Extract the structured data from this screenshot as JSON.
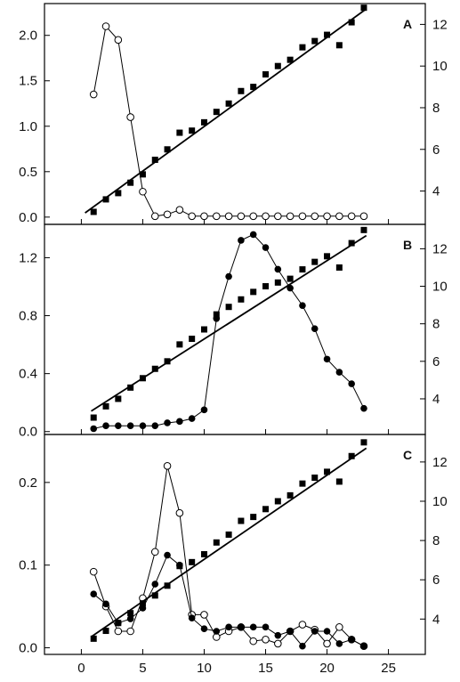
{
  "chart_data": [
    {
      "panel": "A",
      "type": "line",
      "title": "",
      "xlabel": "",
      "ylabel": "",
      "y2label": "",
      "xlim": [
        -3,
        28
      ],
      "ylim": [
        -0.08,
        2.35
      ],
      "y2lim": [
        2.4,
        13.0
      ],
      "x_ticks": [
        "0",
        "5",
        "10",
        "15",
        "20",
        "25"
      ],
      "y_ticks": [
        "0.0",
        "0.5",
        "1.0",
        "1.5",
        "2.0"
      ],
      "y2_ticks": [
        "4",
        "6",
        "8",
        "10",
        "12"
      ],
      "legend": "none",
      "series": [
        {
          "marker": "open-circle",
          "axis": "left",
          "connected": true,
          "x": [
            1,
            2,
            3,
            4,
            5,
            6,
            7,
            8,
            9,
            10,
            11,
            12,
            13,
            14,
            15,
            16,
            17,
            18,
            19,
            20,
            21,
            22,
            23
          ],
          "values": [
            1.35,
            2.1,
            1.95,
            1.1,
            0.28,
            0.01,
            0.03,
            0.08,
            0.01,
            0.01,
            0.01,
            0.01,
            0.01,
            0.01,
            0.01,
            0.01,
            0.01,
            0.01,
            0.01,
            0.01,
            0.01,
            0.01,
            0.01
          ]
        },
        {
          "marker": "filled-square",
          "axis": "right",
          "connected": false,
          "x": [
            1,
            2,
            3,
            4,
            5,
            6,
            7,
            8,
            9,
            10,
            11,
            12,
            13,
            14,
            15,
            16,
            17,
            18,
            19,
            20,
            21,
            22,
            23
          ],
          "values": [
            3.0,
            3.6,
            3.9,
            4.4,
            4.8,
            5.5,
            6.0,
            6.8,
            6.9,
            7.3,
            7.8,
            8.2,
            8.8,
            9.0,
            9.6,
            10.0,
            10.3,
            10.9,
            11.2,
            11.5,
            11.0,
            12.1,
            12.8
          ]
        },
        {
          "marker": "none",
          "axis": "right",
          "connected": true,
          "x": [
            0.3,
            23.1
          ],
          "values": [
            2.95,
            12.7
          ]
        }
      ]
    },
    {
      "panel": "B",
      "type": "line",
      "title": "",
      "xlabel": "",
      "ylabel": "",
      "y2label": "",
      "xlim": [
        -3,
        28
      ],
      "ylim": [
        -0.02,
        1.43
      ],
      "y2lim": [
        2.1,
        13.3
      ],
      "x_ticks": [
        "0",
        "5",
        "10",
        "15",
        "20",
        "25"
      ],
      "y_ticks": [
        "0.0",
        "0.4",
        "0.8",
        "1.2"
      ],
      "y2_ticks": [
        "4",
        "6",
        "8",
        "10",
        "12"
      ],
      "legend": "none",
      "series": [
        {
          "marker": "filled-circle",
          "axis": "left",
          "connected": true,
          "x": [
            1,
            2,
            3,
            4,
            5,
            6,
            7,
            8,
            9,
            10,
            11,
            12,
            13,
            14,
            15,
            16,
            17,
            18,
            19,
            20,
            21,
            22,
            23
          ],
          "values": [
            0.02,
            0.04,
            0.04,
            0.04,
            0.04,
            0.04,
            0.06,
            0.07,
            0.09,
            0.15,
            0.78,
            1.07,
            1.32,
            1.36,
            1.27,
            1.12,
            0.99,
            0.87,
            0.71,
            0.5,
            0.41,
            0.33,
            0.16
          ]
        },
        {
          "marker": "filled-square",
          "axis": "right",
          "connected": false,
          "x": [
            1,
            2,
            3,
            4,
            5,
            6,
            7,
            8,
            9,
            10,
            11,
            12,
            13,
            14,
            15,
            16,
            17,
            18,
            19,
            20,
            21,
            22,
            23
          ],
          "values": [
            3.0,
            3.6,
            4.0,
            4.6,
            5.1,
            5.6,
            6.0,
            6.9,
            7.2,
            7.7,
            8.5,
            8.9,
            9.3,
            9.7,
            10.0,
            10.2,
            10.4,
            10.9,
            11.3,
            11.6,
            11.0,
            12.3,
            13.0
          ]
        },
        {
          "marker": "none",
          "axis": "right",
          "connected": true,
          "x": [
            0.8,
            23.2
          ],
          "values": [
            3.35,
            12.7
          ]
        }
      ]
    },
    {
      "panel": "C",
      "type": "line",
      "title": "",
      "xlabel": "",
      "ylabel": "",
      "y2label": "",
      "xlim": [
        -3,
        28
      ],
      "ylim": [
        -0.008,
        0.258
      ],
      "y2lim": [
        2.2,
        13.4
      ],
      "x_ticks": [
        "0",
        "5",
        "10",
        "15",
        "20",
        "25"
      ],
      "y_ticks": [
        "0.0",
        "0.1",
        "0.2"
      ],
      "y2_ticks": [
        "4",
        "6",
        "8",
        "10",
        "12"
      ],
      "legend": "none",
      "series": [
        {
          "marker": "open-circle",
          "axis": "left",
          "connected": true,
          "x": [
            1,
            2,
            3,
            4,
            5,
            6,
            7,
            8,
            9,
            10,
            11,
            12,
            13,
            14,
            15,
            16,
            17,
            18,
            19,
            20,
            21,
            22,
            23
          ],
          "values": [
            0.092,
            0.05,
            0.02,
            0.02,
            0.06,
            0.116,
            0.22,
            0.163,
            0.04,
            0.04,
            0.013,
            0.02,
            0.025,
            0.008,
            0.01,
            0.005,
            0.02,
            0.028,
            0.022,
            0.005,
            0.025,
            0.01,
            0.002
          ]
        },
        {
          "marker": "filled-circle",
          "axis": "left",
          "connected": true,
          "x": [
            1,
            2,
            3,
            4,
            5,
            6,
            7,
            8,
            9,
            10,
            11,
            12,
            13,
            14,
            15,
            16,
            17,
            18,
            19,
            20,
            21,
            22,
            23
          ],
          "values": [
            0.065,
            0.053,
            0.03,
            0.035,
            0.048,
            0.077,
            0.112,
            0.1,
            0.036,
            0.023,
            0.02,
            0.025,
            0.025,
            0.025,
            0.025,
            0.015,
            0.02,
            0.002,
            0.02,
            0.02,
            0.005,
            0.01,
            0.002
          ]
        },
        {
          "marker": "filled-square",
          "axis": "right",
          "connected": false,
          "x": [
            1,
            2,
            3,
            4,
            5,
            6,
            7,
            8,
            9,
            10,
            11,
            12,
            13,
            14,
            15,
            16,
            17,
            18,
            19,
            20,
            21,
            22,
            23
          ],
          "values": [
            3.0,
            3.4,
            3.8,
            4.3,
            4.8,
            5.2,
            5.7,
            6.7,
            6.9,
            7.3,
            7.9,
            8.3,
            9.0,
            9.2,
            9.6,
            10.0,
            10.3,
            10.9,
            11.2,
            11.5,
            11.0,
            12.3,
            13.0
          ]
        },
        {
          "marker": "none",
          "axis": "right",
          "connected": true,
          "x": [
            0.8,
            23.2
          ],
          "values": [
            3.1,
            12.7
          ]
        }
      ]
    }
  ]
}
